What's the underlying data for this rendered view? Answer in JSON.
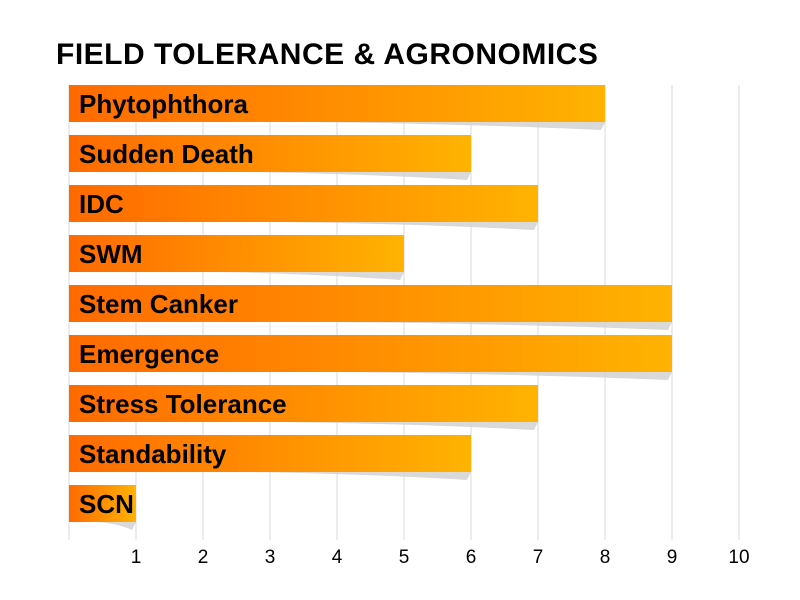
{
  "title": "FIELD TOLERANCE & AGRONOMICS",
  "chart_data": {
    "type": "bar",
    "orientation": "horizontal",
    "categories": [
      "Phytophthora",
      "Sudden Death",
      "IDC",
      "SWM",
      "Stem Canker",
      "Emergence",
      "Stress Tolerance",
      "Standability",
      "SCN"
    ],
    "values": [
      8,
      6,
      7,
      5,
      9,
      9,
      7,
      6,
      1
    ],
    "xlim": [
      0,
      10
    ],
    "x_ticks": [
      "1",
      "2",
      "3",
      "4",
      "5",
      "6",
      "7",
      "8",
      "9",
      "10"
    ],
    "grid": "vertical",
    "legend": "none",
    "colors": {
      "bar_start": "#ff6a00",
      "bar_end": "#ffb300",
      "grid": "#d9d9d9",
      "shadow": "#cfcfcf"
    }
  }
}
